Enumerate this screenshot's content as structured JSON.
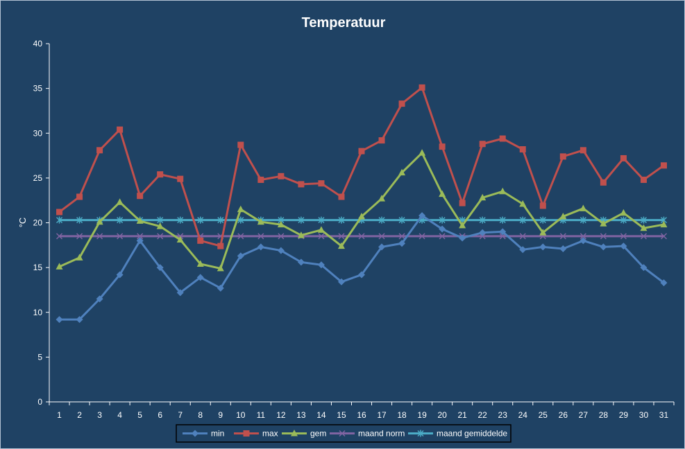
{
  "chart_data": {
    "type": "line",
    "title": "Temperatuur",
    "xlabel": "",
    "ylabel": "°C",
    "ylim": [
      0,
      40
    ],
    "yticks": [
      0,
      5,
      10,
      15,
      20,
      25,
      30,
      35,
      40
    ],
    "grid": false,
    "legend_position": "bottom",
    "x": [
      1,
      2,
      3,
      4,
      5,
      6,
      7,
      8,
      9,
      10,
      11,
      12,
      13,
      14,
      15,
      16,
      17,
      18,
      19,
      20,
      21,
      22,
      23,
      24,
      25,
      26,
      27,
      28,
      29,
      30,
      31
    ],
    "series": [
      {
        "name": "min",
        "color": "#4f81bd",
        "marker": "diamond",
        "values": [
          9.2,
          9.2,
          11.5,
          14.2,
          18.0,
          15.0,
          12.2,
          13.9,
          12.7,
          16.3,
          17.3,
          16.9,
          15.6,
          15.3,
          13.4,
          14.2,
          17.3,
          17.7,
          20.8,
          19.3,
          18.3,
          18.9,
          19.0,
          17.0,
          17.3,
          17.1,
          18.0,
          17.3,
          17.4,
          15.0,
          13.3
        ]
      },
      {
        "name": "max",
        "color": "#c0504d",
        "marker": "square",
        "values": [
          21.2,
          22.9,
          28.1,
          30.4,
          23.0,
          25.4,
          24.9,
          18.0,
          17.4,
          28.7,
          24.8,
          25.2,
          24.3,
          24.4,
          22.9,
          28.0,
          29.2,
          33.3,
          35.1,
          28.5,
          22.2,
          28.8,
          29.4,
          28.2,
          21.9,
          27.4,
          28.1,
          24.5,
          27.2,
          24.8,
          26.4
        ]
      },
      {
        "name": "gem",
        "color": "#9bbb59",
        "marker": "triangle",
        "values": [
          15.1,
          16.1,
          20.1,
          22.3,
          20.2,
          19.6,
          18.1,
          15.4,
          14.9,
          21.5,
          20.1,
          19.8,
          18.6,
          19.2,
          17.4,
          20.7,
          22.7,
          25.6,
          27.8,
          23.2,
          19.7,
          22.8,
          23.5,
          22.1,
          18.9,
          20.7,
          21.6,
          19.9,
          21.1,
          19.4,
          19.8
        ]
      },
      {
        "name": "maand norm",
        "color": "#8064a2",
        "marker": "x",
        "values": [
          18.5,
          18.5,
          18.5,
          18.5,
          18.5,
          18.5,
          18.5,
          18.5,
          18.5,
          18.5,
          18.5,
          18.5,
          18.5,
          18.5,
          18.5,
          18.5,
          18.5,
          18.5,
          18.5,
          18.5,
          18.5,
          18.5,
          18.5,
          18.5,
          18.5,
          18.5,
          18.5,
          18.5,
          18.5,
          18.5,
          18.5
        ]
      },
      {
        "name": "maand gemiddelde",
        "color": "#4bacc6",
        "marker": "star",
        "values": [
          20.3,
          20.3,
          20.3,
          20.3,
          20.3,
          20.3,
          20.3,
          20.3,
          20.3,
          20.3,
          20.3,
          20.3,
          20.3,
          20.3,
          20.3,
          20.3,
          20.3,
          20.3,
          20.3,
          20.3,
          20.3,
          20.3,
          20.3,
          20.3,
          20.3,
          20.3,
          20.3,
          20.3,
          20.3,
          20.3,
          20.3
        ]
      }
    ]
  },
  "colors": {
    "background": "#1f4264",
    "axis": "#ffffff",
    "legend_background": "#1f4264"
  }
}
